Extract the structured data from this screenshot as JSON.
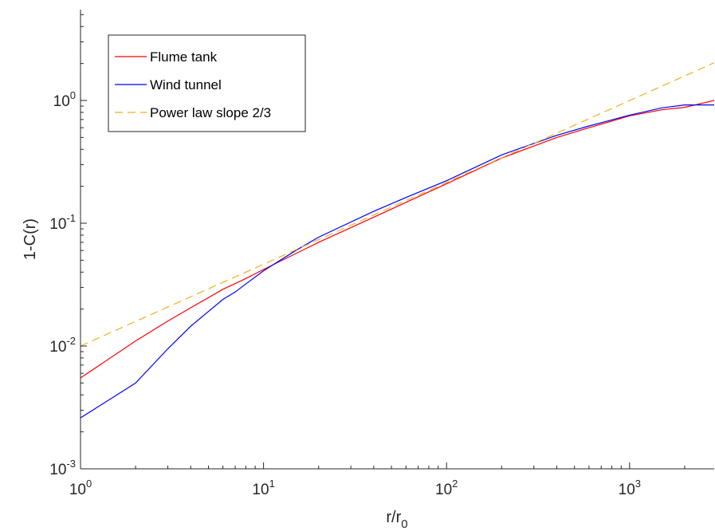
{
  "chart_data": {
    "type": "line",
    "xlabel": "r/r",
    "xlabel_subscript": "0",
    "ylabel": "1-C(r)",
    "x_scale": "log",
    "y_scale": "log",
    "xlim": [
      1,
      2900
    ],
    "ylim": [
      0.001,
      5.5
    ],
    "grid": false,
    "legend_position": "top-left",
    "x_ticks": [
      {
        "value": 1,
        "base": "10",
        "exp": "0"
      },
      {
        "value": 10,
        "base": "10",
        "exp": "1"
      },
      {
        "value": 100,
        "base": "10",
        "exp": "2"
      },
      {
        "value": 1000,
        "base": "10",
        "exp": "3"
      }
    ],
    "y_ticks": [
      {
        "value": 0.001,
        "base": "10",
        "exp": "-3"
      },
      {
        "value": 0.01,
        "base": "10",
        "exp": "-2"
      },
      {
        "value": 0.1,
        "base": "10",
        "exp": "-1"
      },
      {
        "value": 1,
        "base": "10",
        "exp": "0"
      }
    ],
    "series": [
      {
        "name": "Flume tank",
        "color": "#ff0000",
        "style": "solid",
        "x": [
          1,
          2,
          3,
          4,
          6,
          8,
          10,
          20,
          40,
          60,
          100,
          200,
          400,
          600,
          1000,
          1500,
          2000,
          2900
        ],
        "y": [
          0.0055,
          0.011,
          0.016,
          0.0205,
          0.029,
          0.0355,
          0.042,
          0.07,
          0.112,
          0.148,
          0.21,
          0.34,
          0.5,
          0.6,
          0.75,
          0.84,
          0.88,
          1.0
        ]
      },
      {
        "name": "Wind tunnel",
        "color": "#0000ff",
        "style": "solid",
        "x": [
          1,
          2,
          3,
          4,
          6,
          7,
          8,
          10,
          15,
          20,
          40,
          60,
          100,
          200,
          400,
          600,
          1000,
          1500,
          2000,
          2900
        ],
        "y": [
          0.0026,
          0.005,
          0.0095,
          0.0145,
          0.024,
          0.0275,
          0.032,
          0.041,
          0.06,
          0.077,
          0.125,
          0.162,
          0.222,
          0.36,
          0.52,
          0.62,
          0.76,
          0.87,
          0.92,
          0.92
        ]
      },
      {
        "name": "Power law slope 2/3",
        "color": "#edb120",
        "style": "dashed",
        "x": [
          1,
          2900
        ],
        "y": [
          0.01,
          2.03
        ]
      }
    ]
  }
}
